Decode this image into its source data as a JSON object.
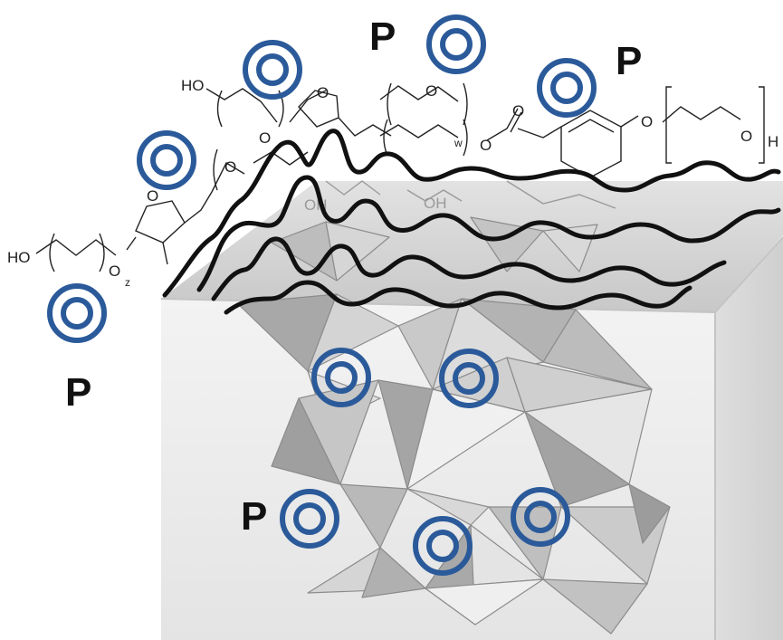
{
  "labels": {
    "p": "P"
  },
  "chem_text": {
    "ho": "HO",
    "o": "O",
    "h": "H",
    "z": "z",
    "w": "w",
    "oh": "OH"
  },
  "colors": {
    "target_ring": "#2b5a9a",
    "polymer": "#111111",
    "box_top": "#cdcdcd",
    "box_front": "#ececec",
    "box_side": "#d9d9d9",
    "tetra_light": "#d0d0d0",
    "tetra_dark": "#9a9a9a"
  },
  "icons": {
    "target": "concentric-circle-target-icon"
  }
}
